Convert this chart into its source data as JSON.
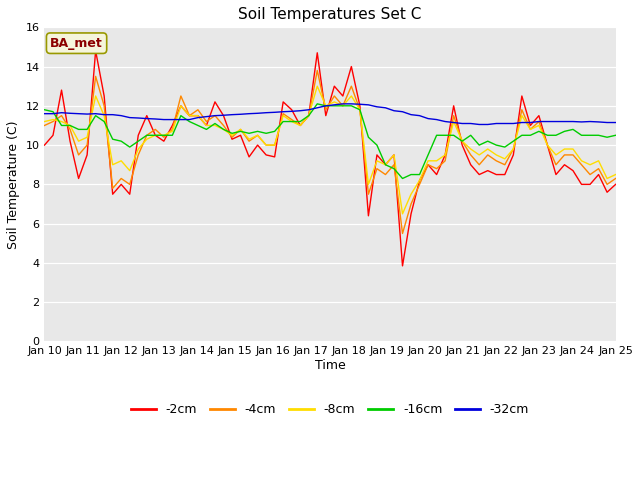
{
  "title": "Soil Temperatures Set C",
  "xlabel": "Time",
  "ylabel": "Soil Temperature (C)",
  "ylim": [
    0,
    16
  ],
  "yticks": [
    0,
    2,
    4,
    6,
    8,
    10,
    12,
    14,
    16
  ],
  "bg_color": "#e8e8e8",
  "annotation_text": "BA_met",
  "annotation_color": "#8b0000",
  "annotation_bg": "#f5f5dc",
  "x_labels": [
    "Jan 10",
    "Jan 11",
    "Jan 12",
    "Jan 13",
    "Jan 14",
    "Jan 15",
    "Jan 16",
    "Jan 17",
    "Jan 18",
    "Jan 19",
    "Jan 20",
    "Jan 21",
    "Jan 22",
    "Jan 23",
    "Jan 24",
    "Jan 25"
  ],
  "series": {
    "-2cm": {
      "color": "#ff0000",
      "data": [
        10.0,
        10.5,
        12.8,
        10.2,
        8.3,
        9.5,
        14.8,
        12.5,
        7.5,
        8.0,
        7.5,
        10.5,
        11.5,
        10.5,
        10.2,
        11.0,
        12.0,
        11.5,
        11.5,
        11.0,
        12.2,
        11.5,
        10.3,
        10.5,
        9.4,
        10.0,
        9.5,
        9.4,
        12.2,
        11.8,
        11.0,
        11.5,
        14.7,
        11.5,
        13.0,
        12.5,
        14.0,
        12.0,
        6.4,
        9.5,
        9.0,
        9.5,
        3.85,
        6.5,
        8.2,
        9.0,
        8.5,
        9.5,
        12.0,
        10.0,
        9.0,
        8.5,
        8.7,
        8.5,
        8.5,
        9.5,
        12.5,
        11.0,
        11.5,
        10.0,
        8.5,
        9.0,
        8.7,
        8.0,
        8.0,
        8.5,
        7.6,
        8.0
      ]
    },
    "-4cm": {
      "color": "#ff8800",
      "data": [
        11.0,
        11.2,
        11.5,
        10.8,
        9.5,
        10.0,
        13.5,
        12.0,
        7.8,
        8.3,
        8.0,
        9.5,
        10.5,
        10.8,
        10.4,
        10.8,
        12.5,
        11.5,
        11.8,
        11.2,
        11.5,
        11.0,
        10.4,
        10.8,
        10.2,
        10.5,
        10.0,
        10.0,
        11.6,
        11.3,
        11.0,
        11.5,
        13.8,
        11.8,
        12.5,
        12.0,
        13.0,
        11.8,
        7.5,
        8.8,
        8.5,
        9.0,
        5.5,
        7.0,
        8.0,
        9.0,
        8.8,
        9.2,
        11.5,
        10.2,
        9.5,
        9.0,
        9.5,
        9.2,
        9.0,
        9.8,
        11.8,
        10.8,
        11.2,
        10.0,
        9.0,
        9.5,
        9.5,
        9.0,
        8.5,
        8.8,
        8.0,
        8.3
      ]
    },
    "-8cm": {
      "color": "#ffdd00",
      "data": [
        11.2,
        11.3,
        11.2,
        11.0,
        10.2,
        10.4,
        12.5,
        11.5,
        9.0,
        9.2,
        8.7,
        9.8,
        10.3,
        10.5,
        10.5,
        10.7,
        12.0,
        11.5,
        11.5,
        11.0,
        11.0,
        10.8,
        10.5,
        10.8,
        10.3,
        10.5,
        10.0,
        10.0,
        11.5,
        11.2,
        11.0,
        11.5,
        13.0,
        12.0,
        12.2,
        12.0,
        12.5,
        11.8,
        8.0,
        9.2,
        9.0,
        9.5,
        6.5,
        7.5,
        8.2,
        9.2,
        9.2,
        9.5,
        11.2,
        10.2,
        9.8,
        9.5,
        9.8,
        9.5,
        9.3,
        9.8,
        11.5,
        10.8,
        11.0,
        10.0,
        9.5,
        9.8,
        9.8,
        9.2,
        9.0,
        9.2,
        8.3,
        8.5
      ]
    },
    "-16cm": {
      "color": "#00cc00",
      "data": [
        11.8,
        11.7,
        11.0,
        11.0,
        10.8,
        10.8,
        11.5,
        11.2,
        10.3,
        10.2,
        9.9,
        10.2,
        10.5,
        10.5,
        10.5,
        10.5,
        11.5,
        11.2,
        11.0,
        10.8,
        11.1,
        10.8,
        10.6,
        10.7,
        10.6,
        10.7,
        10.6,
        10.7,
        11.2,
        11.2,
        11.2,
        11.5,
        12.1,
        12.0,
        12.0,
        12.0,
        12.0,
        11.8,
        10.4,
        10.0,
        9.0,
        8.8,
        8.3,
        8.5,
        8.5,
        9.5,
        10.5,
        10.5,
        10.5,
        10.2,
        10.5,
        10.0,
        10.2,
        10.0,
        9.9,
        10.2,
        10.5,
        10.5,
        10.7,
        10.5,
        10.5,
        10.7,
        10.8,
        10.5,
        10.5,
        10.5,
        10.4,
        10.5
      ]
    },
    "-32cm": {
      "color": "#0000dd",
      "data": [
        11.6,
        11.6,
        11.65,
        11.62,
        11.6,
        11.58,
        11.6,
        11.55,
        11.55,
        11.5,
        11.4,
        11.38,
        11.35,
        11.33,
        11.3,
        11.3,
        11.3,
        11.3,
        11.4,
        11.45,
        11.5,
        11.52,
        11.55,
        11.57,
        11.6,
        11.62,
        11.65,
        11.67,
        11.7,
        11.72,
        11.75,
        11.8,
        11.9,
        12.0,
        12.05,
        12.1,
        12.1,
        12.08,
        12.05,
        11.95,
        11.9,
        11.75,
        11.7,
        11.55,
        11.5,
        11.35,
        11.3,
        11.2,
        11.15,
        11.1,
        11.1,
        11.05,
        11.05,
        11.1,
        11.1,
        11.1,
        11.15,
        11.15,
        11.2,
        11.2,
        11.2,
        11.2,
        11.2,
        11.18,
        11.2,
        11.18,
        11.15,
        11.15
      ]
    }
  },
  "legend": [
    {
      "label": "-2cm",
      "color": "#ff0000"
    },
    {
      "label": "-4cm",
      "color": "#ff8800"
    },
    {
      "label": "-8cm",
      "color": "#ffdd00"
    },
    {
      "label": "-16cm",
      "color": "#00cc00"
    },
    {
      "label": "-32cm",
      "color": "#0000dd"
    }
  ]
}
